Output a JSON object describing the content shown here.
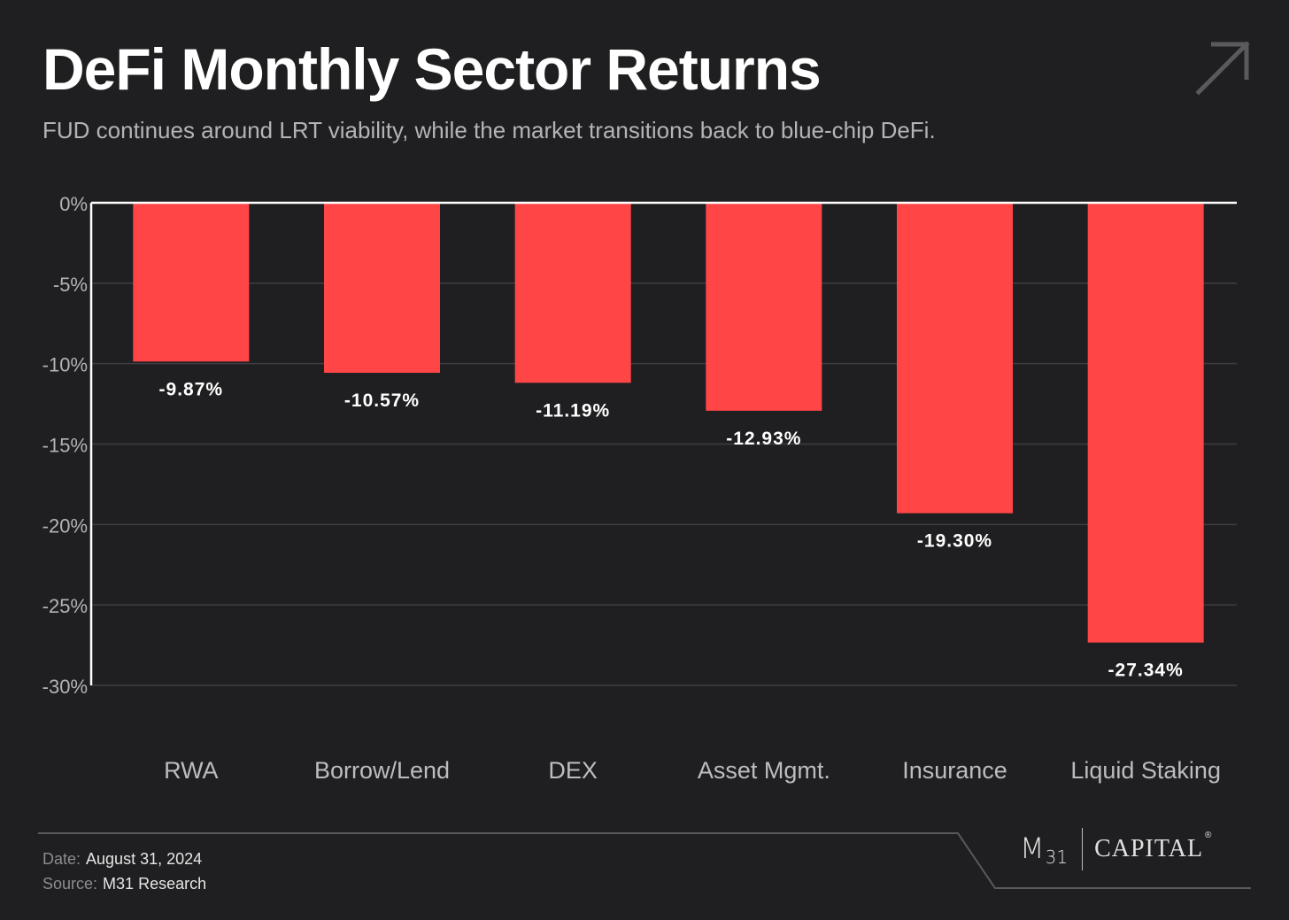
{
  "header": {
    "title": "DeFi Monthly Sector Returns",
    "subtitle": "FUD continues around LRT viability, while the market transitions back to blue-chip DeFi."
  },
  "chart_data": {
    "type": "bar",
    "title": "DeFi Monthly Sector Returns",
    "subtitle": "FUD continues around LRT viability, while the market transitions back to blue-chip DeFi.",
    "categories": [
      "RWA",
      "Borrow/Lend",
      "DEX",
      "Asset Mgmt.",
      "Insurance",
      "Liquid Staking"
    ],
    "values": [
      -9.87,
      -10.57,
      -11.19,
      -12.93,
      -19.3,
      -27.34
    ],
    "data_labels": [
      "-9.87%",
      "-10.57%",
      "-11.19%",
      "-12.93%",
      "-19.30%",
      "-27.34%"
    ],
    "xlabel": "",
    "ylabel": "",
    "ylim": [
      -30,
      0
    ],
    "yticks": [
      0,
      -5,
      -10,
      -15,
      -20,
      -25,
      -30
    ],
    "ytick_labels": [
      "0%",
      "-5%",
      "-10%",
      "-15%",
      "-20%",
      "-25%",
      "-30%"
    ],
    "grid": true,
    "bar_color": "#ff4545"
  },
  "footer": {
    "date_label": "Date:",
    "date_value": "August 31, 2024",
    "source_label": "Source:",
    "source_value": "M31 Research"
  },
  "logo": {
    "mark": "M",
    "mark_sub": "31",
    "name": "CAPITAL",
    "registered": "®"
  },
  "icons": {
    "corner": "arrow-up-right-icon"
  },
  "colors": {
    "background": "#1f1f21",
    "bar": "#ff4545",
    "text": "#ffffff",
    "muted": "#b4b4b8",
    "grid": "#3e3e42"
  }
}
